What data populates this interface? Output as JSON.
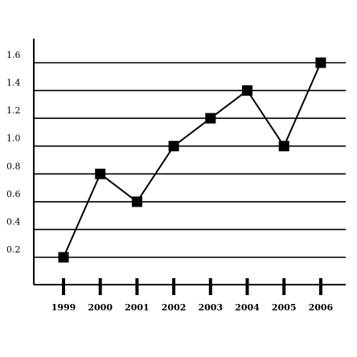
{
  "chart_data": {
    "type": "line",
    "title": "",
    "xlabel": "",
    "ylabel": "",
    "categories": [
      "1999",
      "2000",
      "2001",
      "2002",
      "2003",
      "2004",
      "2005",
      "2006"
    ],
    "series": [
      {
        "values": [
          0.2,
          0.8,
          0.6,
          1.0,
          1.2,
          1.4,
          1.0,
          1.6
        ]
      }
    ],
    "y_ticks": [
      "0.2",
      "0.4",
      "0.6",
      "0.8",
      "1.0",
      "1.2",
      "1.4",
      "1.6"
    ],
    "ylim": [
      0,
      1.8
    ],
    "grid": true,
    "marker": "square",
    "colors": {
      "line": "#000000",
      "marker": "#000000",
      "grid": "#000000"
    }
  }
}
